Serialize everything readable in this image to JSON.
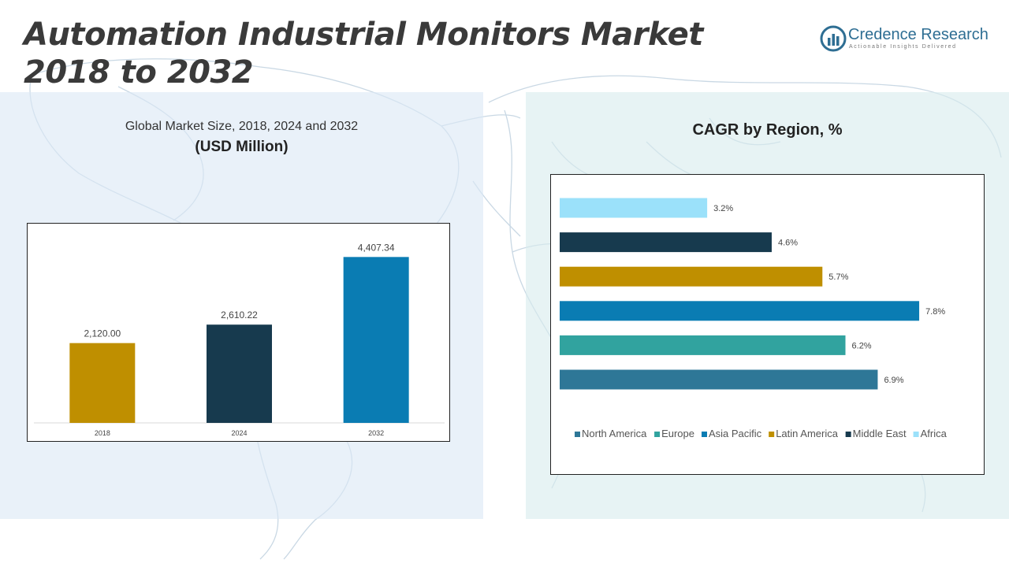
{
  "header": {
    "title": "Automation Industrial Monitors Market 2018 to 2032"
  },
  "logo": {
    "name": "Credence Research",
    "tagline": "Actionable Insights Delivered",
    "icon": "credence-logo-icon"
  },
  "colors": {
    "gold": "#BF8F00",
    "dark_navy": "#173A4E",
    "blue": "#0A7CB3",
    "teal": "#31A39F",
    "steel_blue": "#2E7797",
    "light_blue": "#9BE1FA"
  },
  "chart_data": [
    {
      "type": "bar",
      "title": "Global Market Size, 2018, 2024 and 2032",
      "subtitle": "(USD Million)",
      "categories": [
        "2018",
        "2024",
        "2032"
      ],
      "values": [
        2120.0,
        2610.22,
        4407.34
      ],
      "data_labels": [
        "2,120.00",
        "2,610.22",
        "4,407.34"
      ],
      "colors": [
        "#BF8F00",
        "#173A4E",
        "#0A7CB3"
      ],
      "ylim": [
        0,
        5000
      ],
      "grid": false,
      "legend": false
    },
    {
      "type": "bar",
      "orientation": "horizontal",
      "title": "CAGR by Region, %",
      "categories": [
        "Africa",
        "Middle East",
        "Latin America",
        "Asia Pacific",
        "Europe",
        "North America"
      ],
      "values": [
        3.2,
        4.6,
        5.7,
        7.8,
        6.2,
        6.9
      ],
      "data_labels": [
        "3.2%",
        "4.6%",
        "5.7%",
        "7.8%",
        "6.2%",
        "6.9%"
      ],
      "colors": [
        "#9BE1FA",
        "#173A4E",
        "#BF8F00",
        "#0A7CB3",
        "#31A39F",
        "#2E7797"
      ],
      "legend_order": [
        "North America",
        "Europe",
        "Asia Pacific",
        "Latin America",
        "Middle East",
        "Africa"
      ],
      "legend_colors": [
        "#2E7797",
        "#31A39F",
        "#0A7CB3",
        "#BF8F00",
        "#173A4E",
        "#9BE1FA"
      ],
      "xlim": [
        0,
        8.5
      ],
      "grid": false,
      "legend": "bottom"
    }
  ]
}
